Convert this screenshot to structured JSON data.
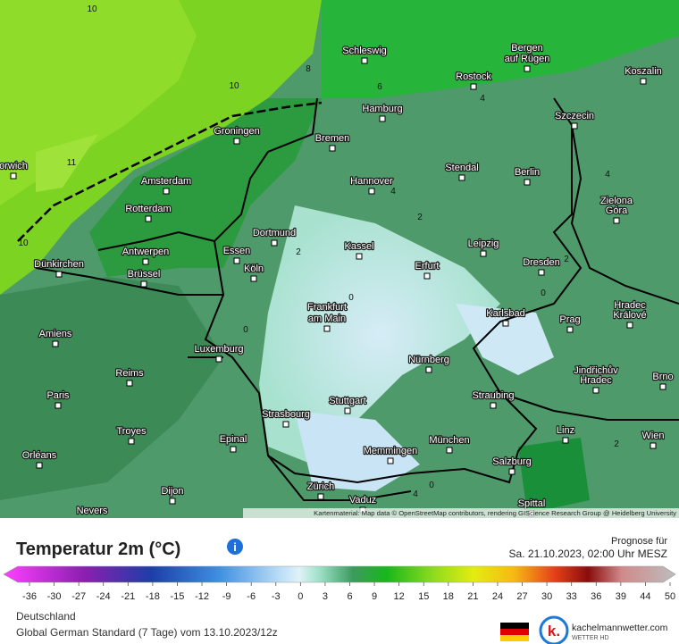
{
  "map": {
    "cities": [
      "Schleswig",
      "Bergen",
      "auf Rügen",
      "Rostock",
      "Koszalin",
      "Hamburg",
      "Szczecin",
      "Groningen",
      "Bremen",
      "Amsterdam",
      "Stendal",
      "Berlin",
      "Hannover",
      "Rotterdam",
      "Zielona",
      "Góra",
      "Dortmund",
      "Essen",
      "Kassel",
      "Leipzig",
      "Antwerpen",
      "Köln",
      "Erfurt",
      "Dresden",
      "Dünkirchen",
      "Brüssel",
      "Frankfurt",
      "am Main",
      "Karlsbad",
      "Prag",
      "Hradec",
      "Králové",
      "Amiens",
      "Luxemburg",
      "Nürnberg",
      "Reims",
      "Jindřichův",
      "Hradec",
      "Brno",
      "Paris",
      "Stuttgart",
      "Straubing",
      "Strasbourg",
      "Troyes",
      "Linz",
      "Wien",
      "Epinal",
      "München",
      "Orléans",
      "Memmingen",
      "Salzburg",
      "Zürich",
      "Dijon",
      "Vaduz",
      "Nevers",
      "Spittal",
      "orwich"
    ],
    "contour_labels": [
      "10",
      "10",
      "11",
      "10",
      "8",
      "6",
      "4",
      "4",
      "2",
      "2",
      "0",
      "0",
      "2",
      "0",
      "4",
      "2",
      "4",
      "0"
    ],
    "attribution": "Kartenmaterial: Map data © OpenStreetMap contributors, rendering GIScience Research Group @ Heidelberg University"
  },
  "legend": {
    "title": "Temperatur 2m (°C)",
    "forecast_label": "Prognose für",
    "forecast_time": "Sa. 21.10.2023, 02:00 Uhr MESZ",
    "ticks": [
      -36,
      -30,
      -27,
      -24,
      -21,
      -18,
      -15,
      -12,
      -9,
      -6,
      -3,
      0,
      3,
      6,
      9,
      12,
      15,
      18,
      21,
      24,
      27,
      30,
      33,
      36,
      39,
      44,
      50
    ]
  },
  "footer": {
    "region": "Deutschland",
    "model": "Global German Standard (7 Tage) vom 13.10.2023/12z",
    "brand": "kachelmannwetter.com",
    "brand_sub": "WETTER HD"
  }
}
